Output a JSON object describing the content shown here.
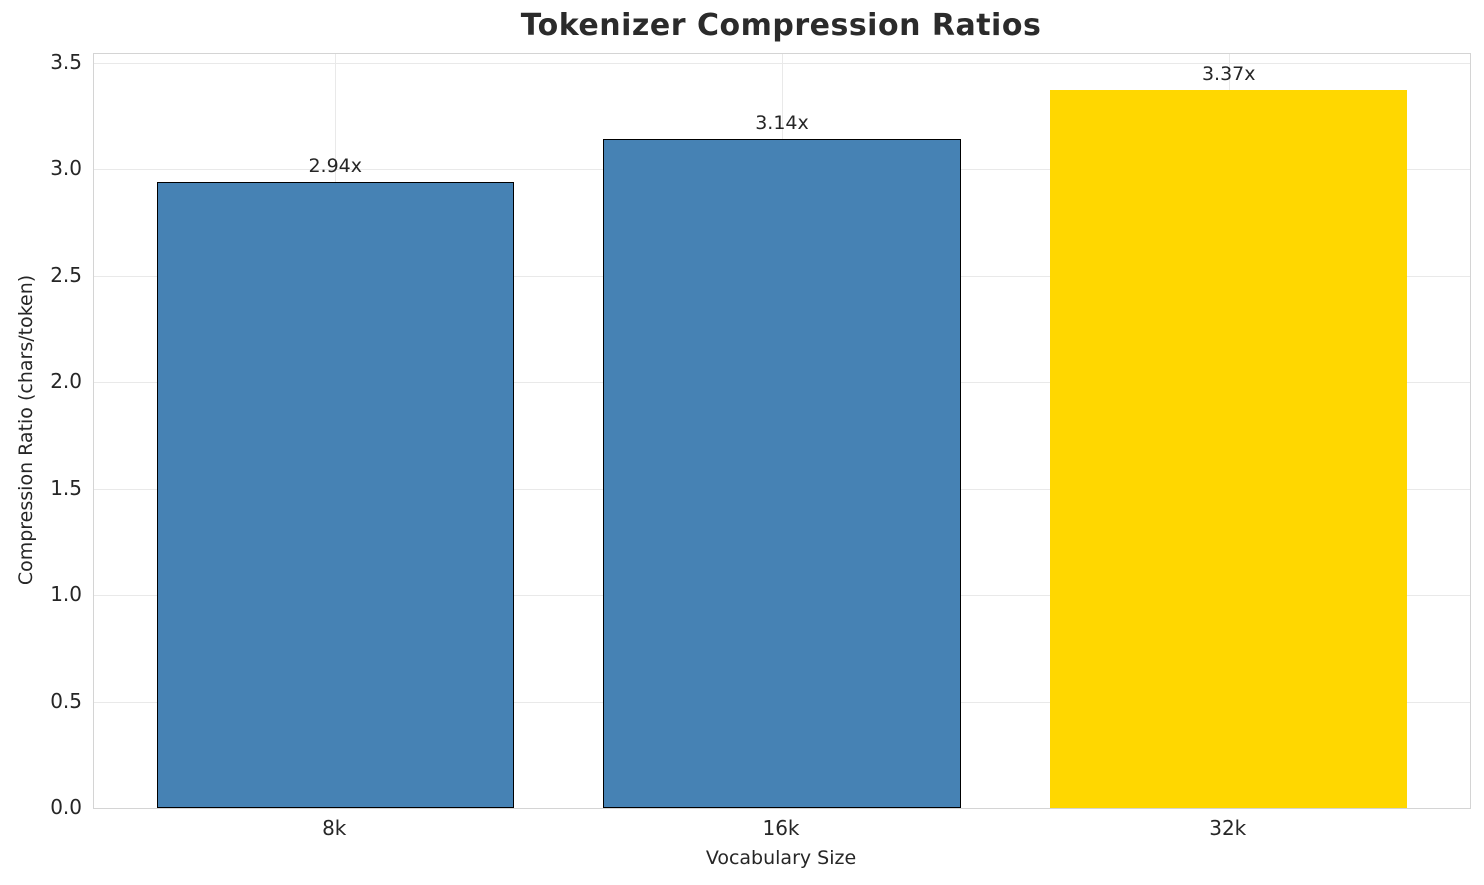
{
  "chart_data": {
    "type": "bar",
    "title": "Tokenizer Compression Ratios",
    "xlabel": "Vocabulary Size",
    "ylabel": "Compression Ratio (chars/token)",
    "categories": [
      "8k",
      "16k",
      "32k"
    ],
    "values": [
      2.94,
      3.14,
      3.37
    ],
    "value_labels": [
      "2.94x",
      "3.14x",
      "3.37x"
    ],
    "bar_colors": [
      "#4682B4",
      "#4682B4",
      "#FFD700"
    ],
    "bar_edge_colors": [
      "#000000",
      "#000000",
      "none"
    ],
    "bar_width_units": 0.8,
    "ylim": [
      0,
      3.54
    ],
    "xlim": [
      -0.54,
      2.54
    ],
    "yticks": [
      0.0,
      0.5,
      1.0,
      1.5,
      2.0,
      2.5,
      3.0,
      3.5
    ],
    "ytick_labels": [
      "0.0",
      "0.5",
      "1.0",
      "1.5",
      "2.0",
      "2.5",
      "3.0",
      "3.5"
    ],
    "grid": true,
    "grid_color": "#e9e9e9",
    "spine_color": "#d4d4d4",
    "title_color": "#2b2b2b",
    "text_color": "#262626",
    "legend": "none"
  }
}
